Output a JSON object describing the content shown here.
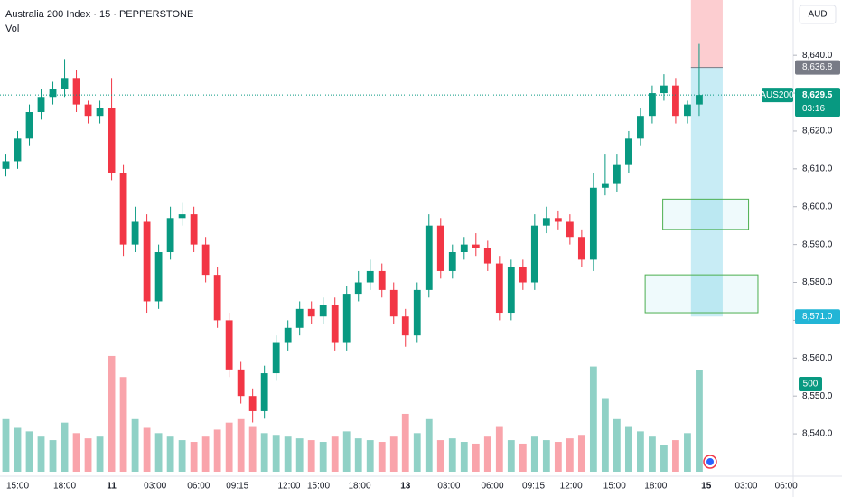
{
  "chart_data": {
    "type": "candlestick",
    "title": "Australia 200 Index · 15 · PEPPERSTONE",
    "subtitle": "Vol",
    "currency": "AUD",
    "up_color": "#089981",
    "down_color": "#f23645",
    "x": [
      0.5,
      1.5,
      2.5,
      3.5,
      4.5,
      5.5,
      6.5,
      7.5,
      8.5,
      9.5,
      10.5,
      11.5,
      12.5,
      13.5,
      14.5,
      15.5,
      16.5,
      17.5,
      18.5,
      19.5,
      20.5,
      21.5,
      22.5,
      23.5,
      24.5,
      25.5,
      26.5,
      27.5,
      28.5,
      29.5,
      30.5,
      31.5,
      32.5,
      33.5,
      34.5,
      35.5,
      36.5,
      37.5,
      38.5,
      39.5,
      40.5,
      41.5,
      42.5,
      43.5,
      44.5,
      45.5,
      46.5,
      47.5,
      48.5,
      49.5,
      50.5,
      51.5,
      52.5,
      53.5,
      54.5,
      55.5,
      56.5,
      57.5,
      58.5,
      59.5
    ],
    "open": [
      8610,
      8612,
      8618,
      8625,
      8629,
      8631,
      8634,
      8627,
      8624,
      8626,
      8609,
      8590,
      8596,
      8575,
      8588,
      8597,
      8598,
      8590,
      8582,
      8570,
      8557,
      8550,
      8546,
      8556,
      8564,
      8568,
      8573,
      8571,
      8574,
      8564,
      8577,
      8580,
      8583,
      8578,
      8571,
      8566,
      8578,
      8595,
      8583,
      8588,
      8590,
      8589,
      8585,
      8572,
      8584,
      8580,
      8595,
      8597,
      8596,
      8592,
      8586,
      8605,
      8606,
      8611,
      8618,
      8624,
      8630,
      8632,
      8624,
      8627
    ],
    "high": [
      8614,
      8620,
      8627,
      8631,
      8633,
      8639,
      8636,
      8628,
      8628,
      8634,
      8611,
      8600,
      8598,
      8590,
      8600,
      8601,
      8600,
      8592,
      8584,
      8572,
      8559,
      8552,
      8558,
      8566,
      8570,
      8575,
      8575,
      8576,
      8576,
      8579,
      8583,
      8586,
      8585,
      8580,
      8573,
      8580,
      8598,
      8597,
      8590,
      8592,
      8593,
      8591,
      8587,
      8586,
      8586,
      8598,
      8600,
      8599,
      8598,
      8594,
      8609,
      8614,
      8614,
      8620,
      8626,
      8632,
      8635,
      8634,
      8628,
      8643
    ],
    "low": [
      8608,
      8610,
      8616,
      8623,
      8627,
      8629,
      8625,
      8622,
      8622,
      8607,
      8587,
      8588,
      8572,
      8573,
      8586,
      8595,
      8588,
      8580,
      8568,
      8555,
      8548,
      8543,
      8544,
      8554,
      8562,
      8566,
      8569,
      8569,
      8562,
      8562,
      8575,
      8578,
      8576,
      8569,
      8563,
      8564,
      8576,
      8581,
      8581,
      8586,
      8587,
      8583,
      8570,
      8570,
      8578,
      8578,
      8593,
      8594,
      8590,
      8584,
      8583,
      8603,
      8604,
      8609,
      8616,
      8622,
      8628,
      8622,
      8622,
      8624
    ],
    "close": [
      8612,
      8618,
      8625,
      8629,
      8631,
      8634,
      8627,
      8624,
      8626,
      8609,
      8590,
      8596,
      8575,
      8588,
      8597,
      8598,
      8590,
      8582,
      8570,
      8557,
      8550,
      8546,
      8556,
      8564,
      8568,
      8573,
      8571,
      8574,
      8564,
      8577,
      8580,
      8583,
      8578,
      8571,
      8566,
      8578,
      8595,
      8583,
      8588,
      8590,
      8589,
      8585,
      8572,
      8584,
      8580,
      8595,
      8597,
      8596,
      8592,
      8586,
      8605,
      8606,
      8611,
      8618,
      8624,
      8630,
      8632,
      8624,
      8627,
      8629.5
    ],
    "volume": [
      300,
      250,
      230,
      200,
      180,
      280,
      220,
      190,
      200,
      660,
      540,
      300,
      250,
      220,
      200,
      180,
      170,
      200,
      240,
      280,
      300,
      260,
      220,
      210,
      200,
      190,
      180,
      170,
      200,
      230,
      190,
      180,
      170,
      200,
      330,
      220,
      300,
      180,
      190,
      170,
      160,
      200,
      260,
      180,
      160,
      200,
      180,
      170,
      190,
      210,
      600,
      420,
      300,
      260,
      230,
      200,
      150,
      180,
      220,
      580
    ],
    "xlim": [
      0,
      67.5
    ],
    "xticks": [
      {
        "value": 1.5,
        "label": "15:00"
      },
      {
        "value": 5.5,
        "label": "18:00"
      },
      {
        "value": 9.5,
        "label": "11"
      },
      {
        "value": 13.2,
        "label": "03:00"
      },
      {
        "value": 16.9,
        "label": "06:00"
      },
      {
        "value": 20.2,
        "label": "09:15"
      },
      {
        "value": 24.6,
        "label": "12:00"
      },
      {
        "value": 27.1,
        "label": "15:00"
      },
      {
        "value": 30.6,
        "label": "18:00"
      },
      {
        "value": 34.5,
        "label": "13"
      },
      {
        "value": 38.2,
        "label": "03:00"
      },
      {
        "value": 41.9,
        "label": "06:00"
      },
      {
        "value": 45.4,
        "label": "09:15"
      },
      {
        "value": 48.6,
        "label": "12:00"
      },
      {
        "value": 52.3,
        "label": "15:00"
      },
      {
        "value": 55.8,
        "label": "18:00"
      },
      {
        "value": 60.1,
        "label": "15"
      },
      {
        "value": 63.5,
        "label": "03:00"
      },
      {
        "value": 66.9,
        "label": "06:00"
      }
    ],
    "ylim": [
      8528.8,
      8654.6
    ],
    "yticks": [
      {
        "value": 8540,
        "label": "8,540.0"
      },
      {
        "value": 8550,
        "label": "8,550.0"
      },
      {
        "value": 8560,
        "label": "8,560.0"
      },
      {
        "value": 8570,
        "label": "8,570.0"
      },
      {
        "value": 8580,
        "label": "8,580.0"
      },
      {
        "value": 8590,
        "label": "8,590.0"
      },
      {
        "value": 8600,
        "label": "8,600.0"
      },
      {
        "value": 8610,
        "label": "8,610.0"
      },
      {
        "value": 8620,
        "label": "8,620.0"
      },
      {
        "value": 8630,
        "label": "8,630.0"
      },
      {
        "value": 8640,
        "label": "8,640.0"
      }
    ],
    "volume_lim": [
      0,
      670
    ],
    "volume_label": 500,
    "last_price": {
      "symbol": "AUS200",
      "value": 8629.5,
      "label": "8,629.5",
      "countdown": "03:16"
    },
    "price_labels": [
      {
        "value": 8636.8,
        "label": "8,636.8",
        "color": "#787b86"
      },
      {
        "value": 8571.0,
        "label": "8,571.0",
        "color": "#22b5d6"
      }
    ],
    "position": {
      "stop": 8654.6,
      "entry": 8636.8,
      "target": 8571.0,
      "x_start": 58.8,
      "x_end": 61.5
    },
    "zones": [
      {
        "top": 8602,
        "bottom": 8594,
        "x_start": 56.4,
        "x_end": 63.7
      },
      {
        "top": 8582,
        "bottom": 8572,
        "x_start": 54.9,
        "x_end": 64.5
      }
    ]
  }
}
